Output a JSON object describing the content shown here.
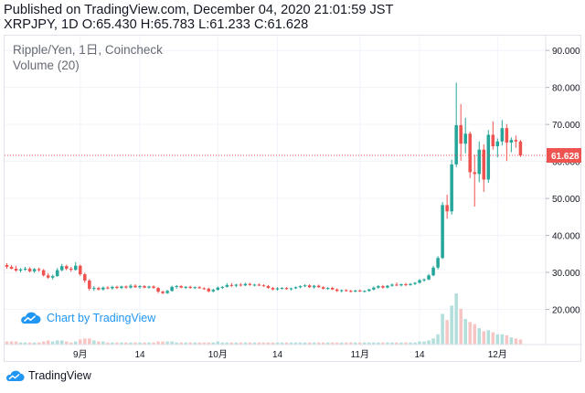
{
  "header": {
    "published": "Published on TradingView.com, December 04, 2020 21:01:59 JST",
    "ohlc": "XRPJPY, 1D O:65.430 H:65.783 L:61.233 C:61.628"
  },
  "legend": {
    "symbol": "Ripple/Yen, 1日, Coincheck",
    "volume": "Volume (20)"
  },
  "watermark": {
    "label": "Chart by TradingView"
  },
  "footer": {
    "brand": "TradingView"
  },
  "colors": {
    "up": "#26a69a",
    "down": "#ef5350",
    "up_volume": "#b2dfdb",
    "down_volume": "#f7c5c4",
    "last_price_line": "#ef5350",
    "grid": "#f0f3fa",
    "axis_text": "#131722",
    "brand": "#2196f3"
  },
  "chart_data": {
    "type": "candlestick",
    "symbol": "XRPJPY",
    "interval": "1D",
    "exchange": "Coincheck",
    "y_axis": {
      "ticks": [
        "20.000",
        "30.000",
        "40.000",
        "50.000",
        "60.000",
        "70.000",
        "80.000",
        "90.000"
      ],
      "range": [
        10.5,
        94
      ],
      "position": "right"
    },
    "x_axis": {
      "ticks": [
        {
          "label": "9月",
          "day": 16
        },
        {
          "label": "14",
          "day": 29
        },
        {
          "label": "10月",
          "day": 46
        },
        {
          "label": "14",
          "day": 59
        },
        {
          "label": "11月",
          "day": 77
        },
        {
          "label": "14",
          "day": 90
        },
        {
          "label": "12月",
          "day": 107
        }
      ],
      "range": [
        -0.5,
        117.5
      ]
    },
    "last_price": 61.628,
    "last_price_label": "61.628",
    "volume_indicator": "Volume (20)",
    "candles": [
      [
        32.0,
        32.5,
        31.0,
        31.5,
        3
      ],
      [
        31.5,
        32.0,
        30.8,
        31.0,
        3
      ],
      [
        31.0,
        31.8,
        30.2,
        30.5,
        3
      ],
      [
        30.5,
        31.2,
        30.0,
        30.8,
        2
      ],
      [
        30.8,
        31.5,
        30.4,
        31.0,
        2
      ],
      [
        31.0,
        31.4,
        30.0,
        30.3,
        2
      ],
      [
        30.3,
        31.2,
        29.9,
        30.9,
        2
      ],
      [
        30.9,
        31.3,
        30.2,
        30.6,
        2
      ],
      [
        30.6,
        30.9,
        28.9,
        29.2,
        3
      ],
      [
        29.2,
        29.8,
        28.3,
        28.6,
        4
      ],
      [
        28.6,
        29.4,
        28.1,
        29.0,
        3
      ],
      [
        29.0,
        31.2,
        28.8,
        30.6,
        4
      ],
      [
        30.6,
        32.3,
        30.3,
        31.7,
        4
      ],
      [
        31.7,
        32.1,
        30.6,
        31.0,
        3
      ],
      [
        31.0,
        31.5,
        30.2,
        30.7,
        2
      ],
      [
        30.7,
        32.8,
        30.5,
        31.8,
        3
      ],
      [
        31.8,
        32.1,
        29.1,
        29.5,
        5
      ],
      [
        29.5,
        29.9,
        27.2,
        27.8,
        6
      ],
      [
        27.8,
        28.2,
        25.1,
        25.6,
        6
      ],
      [
        25.6,
        26.3,
        25.0,
        25.8,
        4
      ],
      [
        25.8,
        26.1,
        25.1,
        25.4,
        3
      ],
      [
        25.4,
        26.2,
        25.1,
        25.9,
        3
      ],
      [
        25.9,
        26.3,
        25.4,
        25.7,
        2
      ],
      [
        25.7,
        26.4,
        25.3,
        26.1,
        2
      ],
      [
        26.1,
        26.4,
        25.5,
        25.8,
        2
      ],
      [
        25.8,
        26.4,
        25.5,
        26.2,
        2
      ],
      [
        26.2,
        26.5,
        25.6,
        25.9,
        2
      ],
      [
        25.9,
        26.8,
        25.6,
        26.4,
        2
      ],
      [
        26.4,
        26.8,
        25.8,
        26.0,
        2
      ],
      [
        26.0,
        26.6,
        25.6,
        26.3,
        2
      ],
      [
        26.3,
        26.6,
        25.7,
        25.9,
        2
      ],
      [
        25.9,
        26.4,
        25.6,
        26.2,
        2
      ],
      [
        26.2,
        26.5,
        25.6,
        25.8,
        2
      ],
      [
        25.8,
        26.1,
        24.4,
        24.8,
        3
      ],
      [
        24.8,
        25.1,
        24.1,
        24.4,
        3
      ],
      [
        24.4,
        25.3,
        24.2,
        25.0,
        3
      ],
      [
        25.0,
        26.4,
        24.8,
        26.1,
        3
      ],
      [
        26.1,
        26.6,
        25.6,
        26.3,
        2
      ],
      [
        26.3,
        26.6,
        25.7,
        25.9,
        2
      ],
      [
        25.9,
        26.3,
        25.5,
        26.1,
        2
      ],
      [
        26.1,
        26.4,
        25.6,
        25.8,
        2
      ],
      [
        25.8,
        26.2,
        25.5,
        26.0,
        2
      ],
      [
        26.0,
        26.3,
        25.6,
        25.7,
        2
      ],
      [
        25.7,
        26.0,
        25.3,
        25.6,
        2
      ],
      [
        25.6,
        25.9,
        24.6,
        24.9,
        2
      ],
      [
        24.9,
        25.6,
        24.6,
        25.3,
        2
      ],
      [
        25.3,
        26.2,
        25.1,
        25.9,
        3
      ],
      [
        25.9,
        26.3,
        25.5,
        26.1,
        2
      ],
      [
        26.1,
        27.1,
        25.9,
        26.6,
        2
      ],
      [
        26.6,
        27.1,
        26.1,
        26.4,
        2
      ],
      [
        26.4,
        26.9,
        26.0,
        26.7,
        2
      ],
      [
        26.7,
        27.1,
        26.2,
        26.5,
        2
      ],
      [
        26.5,
        27.2,
        26.3,
        26.9,
        2
      ],
      [
        26.9,
        27.2,
        26.4,
        26.6,
        2
      ],
      [
        26.6,
        26.9,
        26.2,
        26.7,
        2
      ],
      [
        26.7,
        27.0,
        26.3,
        26.5,
        2
      ],
      [
        26.5,
        26.8,
        26.1,
        26.3,
        2
      ],
      [
        26.3,
        26.6,
        25.6,
        25.8,
        2
      ],
      [
        25.8,
        26.1,
        25.2,
        25.4,
        2
      ],
      [
        25.4,
        26.0,
        25.1,
        25.7,
        2
      ],
      [
        25.7,
        26.0,
        25.4,
        25.8,
        2
      ],
      [
        25.8,
        26.0,
        25.3,
        25.5,
        2
      ],
      [
        25.5,
        25.9,
        25.1,
        25.7,
        2
      ],
      [
        25.7,
        26.2,
        25.5,
        26.0,
        2
      ],
      [
        26.0,
        26.5,
        25.7,
        26.3,
        2
      ],
      [
        26.3,
        26.8,
        26.0,
        26.5,
        2
      ],
      [
        26.5,
        26.8,
        25.8,
        26.0,
        2
      ],
      [
        26.0,
        26.6,
        25.6,
        26.4,
        2
      ],
      [
        26.4,
        26.7,
        25.8,
        26.0,
        2
      ],
      [
        26.0,
        26.3,
        25.4,
        25.6,
        2
      ],
      [
        25.6,
        26.0,
        25.3,
        25.8,
        2
      ],
      [
        25.8,
        26.1,
        25.2,
        25.4,
        2
      ],
      [
        25.4,
        25.7,
        24.7,
        25.0,
        2
      ],
      [
        25.0,
        25.4,
        24.6,
        25.2,
        2
      ],
      [
        25.2,
        25.5,
        24.8,
        25.0,
        2
      ],
      [
        25.0,
        25.3,
        24.6,
        24.9,
        2
      ],
      [
        24.9,
        25.3,
        24.6,
        25.1,
        2
      ],
      [
        25.1,
        25.4,
        24.7,
        24.9,
        2
      ],
      [
        24.9,
        25.2,
        24.6,
        25.0,
        2
      ],
      [
        25.0,
        25.6,
        24.8,
        25.4,
        2
      ],
      [
        25.4,
        26.2,
        25.1,
        25.9,
        2
      ],
      [
        25.9,
        26.6,
        25.6,
        26.3,
        2
      ],
      [
        26.3,
        26.6,
        25.6,
        25.9,
        2
      ],
      [
        25.9,
        26.6,
        25.7,
        26.4,
        2
      ],
      [
        26.4,
        27.0,
        26.1,
        26.7,
        2
      ],
      [
        26.7,
        27.3,
        26.3,
        26.5,
        2
      ],
      [
        26.5,
        27.0,
        26.2,
        26.8,
        2
      ],
      [
        26.8,
        27.2,
        26.3,
        26.6,
        2
      ],
      [
        26.6,
        27.1,
        26.4,
        26.9,
        2
      ],
      [
        26.9,
        27.4,
        26.6,
        27.2,
        2
      ],
      [
        27.2,
        28.2,
        27.0,
        27.9,
        3
      ],
      [
        27.9,
        28.4,
        27.5,
        28.1,
        3
      ],
      [
        28.1,
        29.6,
        27.9,
        29.2,
        4
      ],
      [
        29.2,
        31.8,
        29.0,
        31.3,
        6
      ],
      [
        31.3,
        34.4,
        30.8,
        33.9,
        10
      ],
      [
        33.9,
        49.0,
        33.6,
        48.2,
        30
      ],
      [
        48.2,
        51.0,
        44.5,
        46.5,
        24
      ],
      [
        46.5,
        60.5,
        45.6,
        59.2,
        38
      ],
      [
        59.2,
        81.3,
        58.5,
        69.8,
        50
      ],
      [
        69.8,
        75.5,
        60.2,
        64.8,
        35
      ],
      [
        64.8,
        71.8,
        62.2,
        67.5,
        25
      ],
      [
        67.5,
        68.1,
        55.5,
        57.1,
        22
      ],
      [
        57.1,
        61.8,
        47.8,
        56.6,
        20
      ],
      [
        56.6,
        65.4,
        54.4,
        63.2,
        16
      ],
      [
        63.2,
        64.6,
        51.8,
        55.1,
        13
      ],
      [
        55.1,
        68.5,
        54.2,
        67.2,
        14
      ],
      [
        67.2,
        70.8,
        63.2,
        64.1,
        12
      ],
      [
        64.1,
        66.2,
        61.1,
        65.4,
        10
      ],
      [
        65.4,
        71.2,
        64.3,
        69.0,
        10
      ],
      [
        69.0,
        70.1,
        60.1,
        65.1,
        9
      ],
      [
        65.1,
        66.5,
        62.5,
        65.8,
        7
      ],
      [
        65.8,
        67.0,
        63.7,
        65.4,
        6
      ],
      [
        65.4,
        65.8,
        61.2,
        61.6,
        5
      ]
    ]
  }
}
